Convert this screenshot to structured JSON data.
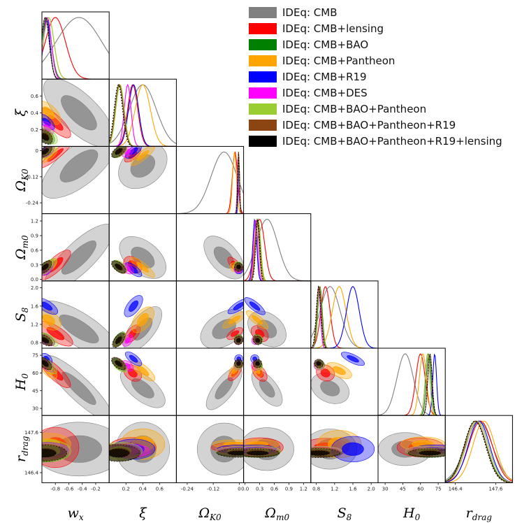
{
  "chart_data": {
    "type": "triangle-corner-plot",
    "title": "",
    "parameters": [
      {
        "symbol": "w",
        "sub": "x",
        "ticks": [
          -0.8,
          -0.6,
          -0.4,
          -0.2
        ],
        "tick_labels": [
          "-0.8",
          "-0.6",
          "-0.4",
          "-0.2"
        ],
        "range": [
          -1.0,
          0.0
        ]
      },
      {
        "symbol": "ξ",
        "sub": "",
        "ticks": [
          0.2,
          0.4,
          0.6
        ],
        "tick_labels": [
          "0.2",
          "0.4",
          "0.6"
        ],
        "range": [
          0.0,
          0.8
        ]
      },
      {
        "symbol": "Ω",
        "sub": "K0",
        "ticks": [
          -0.24,
          -0.12,
          0
        ],
        "tick_labels": [
          "-0.24",
          "-0.12",
          "0"
        ],
        "range": [
          -0.29,
          0.02
        ]
      },
      {
        "symbol": "Ω",
        "sub": "m0",
        "ticks": [
          0,
          0.3,
          0.6,
          0.9,
          1.2
        ],
        "tick_labels": [
          "0.0",
          "0.3",
          "0.6",
          "0.9",
          "1.2"
        ],
        "range": [
          -0.03,
          1.35
        ]
      },
      {
        "symbol": "S",
        "sub": "8",
        "ticks": [
          0.8,
          1.2,
          1.6,
          2.0
        ],
        "tick_labels": [
          "0.8",
          "1.2",
          "1.6",
          "2.0"
        ],
        "range": [
          0.68,
          2.15
        ]
      },
      {
        "symbol": "H",
        "sub": "0",
        "ticks": [
          30,
          45,
          60,
          75
        ],
        "tick_labels": [
          "30",
          "45",
          "60",
          "75"
        ],
        "range": [
          24,
          81
        ]
      },
      {
        "symbol": "r",
        "sub": "drag",
        "ticks": [
          146.4,
          147.6
        ],
        "tick_labels": [
          "146.4",
          "147.6"
        ],
        "range": [
          146.1,
          148.1
        ]
      }
    ],
    "series": [
      {
        "name": "IDEq: CMB",
        "color": "#808080",
        "style": "solid",
        "center": [
          -0.45,
          0.4,
          -0.07,
          0.45,
          1.1,
          47,
          147.1
        ],
        "width": [
          0.34,
          0.16,
          0.06,
          0.22,
          0.22,
          7,
          0.4
        ]
      },
      {
        "name": "IDEq: CMB+lensing",
        "color": "#ff0000",
        "style": "solid",
        "center": [
          -0.8,
          0.28,
          -0.02,
          0.3,
          1.0,
          60,
          147.15
        ],
        "width": [
          0.15,
          0.06,
          0.012,
          0.1,
          0.1,
          4,
          0.35
        ]
      },
      {
        "name": "IDEq: CMB+BAO",
        "color": "#008000",
        "style": "solid",
        "center": [
          -0.93,
          0.12,
          -0.004,
          0.26,
          0.88,
          67,
          147.0
        ],
        "width": [
          0.07,
          0.05,
          0.004,
          0.05,
          0.05,
          2,
          0.33
        ]
      },
      {
        "name": "IDEq: CMB+Pantheon",
        "color": "#ffa500",
        "style": "solid",
        "center": [
          -0.9,
          0.4,
          -0.022,
          0.25,
          1.3,
          62,
          147.25
        ],
        "width": [
          0.08,
          0.09,
          0.009,
          0.05,
          0.15,
          3,
          0.33
        ]
      },
      {
        "name": "IDEq: CMB+R19",
        "color": "#0000ff",
        "style": "solid",
        "center": [
          -0.93,
          0.29,
          -0.002,
          0.2,
          1.6,
          72,
          147.1
        ],
        "width": [
          0.05,
          0.06,
          0.003,
          0.04,
          0.14,
          1.6,
          0.32
        ]
      },
      {
        "name": "IDEq: CMB+DES",
        "color": "#ff00ff",
        "style": "solid",
        "center": [
          -0.92,
          0.22,
          -0.005,
          0.22,
          0.85,
          66,
          147.05
        ],
        "width": [
          0.06,
          0.04,
          0.004,
          0.04,
          0.04,
          2,
          0.33
        ]
      },
      {
        "name": "IDEq: CMB+BAO+Pantheon",
        "color": "#9acd32",
        "style": "solid",
        "center": [
          -0.9,
          0.13,
          -0.004,
          0.27,
          0.87,
          66,
          147.05
        ],
        "width": [
          0.08,
          0.05,
          0.004,
          0.05,
          0.05,
          2,
          0.33
        ]
      },
      {
        "name": "IDEq: CMB+BAO+Pantheon+R19",
        "color": "#8b4513",
        "style": "solid",
        "center": [
          -0.95,
          0.12,
          -0.003,
          0.25,
          0.86,
          68,
          147.0
        ],
        "width": [
          0.06,
          0.05,
          0.004,
          0.04,
          0.05,
          1.8,
          0.32
        ]
      },
      {
        "name": "IDEq: CMB+BAO+Pantheon+R19+lensing",
        "color": "#000000",
        "style": "dashed",
        "center": [
          -0.95,
          0.11,
          -0.003,
          0.26,
          0.85,
          68,
          146.98
        ],
        "width": [
          0.06,
          0.05,
          0.004,
          0.04,
          0.05,
          1.8,
          0.32
        ]
      }
    ],
    "correlations": {
      "1,0": -0.6,
      "2,0": 0.5,
      "3,0": 0.6,
      "4,0": -0.4,
      "5,0": -0.6,
      "6,0": 0.0,
      "2,1": 0.5,
      "3,1": -0.5,
      "4,1": 0.8,
      "5,1": -0.5,
      "6,1": 0.0,
      "3,2": -0.7,
      "4,2": 0.4,
      "5,2": 0.8,
      "6,2": 0.0,
      "4,3": -0.5,
      "5,3": -0.8,
      "6,3": 0.0,
      "5,4": -0.3,
      "6,4": 0.0,
      "6,5": 0.0
    },
    "legend_position": "top-right"
  }
}
